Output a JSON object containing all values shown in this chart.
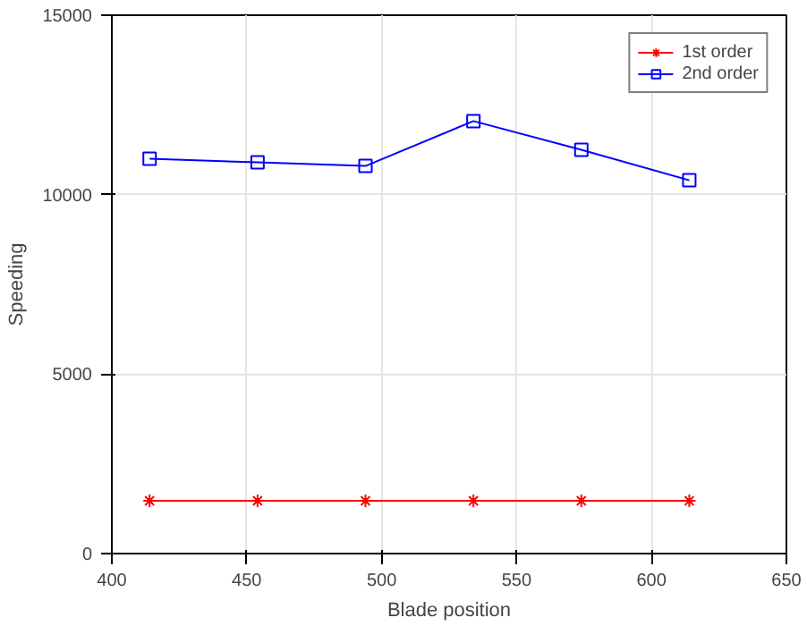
{
  "chart_data": {
    "type": "line",
    "xlabel": "Blade position",
    "ylabel": "Speeding",
    "x": [
      414,
      454,
      494,
      534,
      574,
      614
    ],
    "series": [
      {
        "name": "1st order",
        "color": "#ff0000",
        "marker": "cross",
        "values": [
          1470,
          1470,
          1470,
          1470,
          1470,
          1470
        ]
      },
      {
        "name": "2nd order",
        "color": "#0000ff",
        "marker": "square",
        "values": [
          11000,
          10900,
          10800,
          12050,
          11250,
          10400
        ]
      }
    ],
    "xlim": [
      400,
      650
    ],
    "xticks": [
      400,
      450,
      500,
      550,
      600,
      650
    ],
    "ylim": [
      0,
      15000
    ],
    "yticks": [
      0,
      5000,
      10000,
      15000
    ],
    "grid": true,
    "legend": "top right",
    "line_style": "solid"
  }
}
